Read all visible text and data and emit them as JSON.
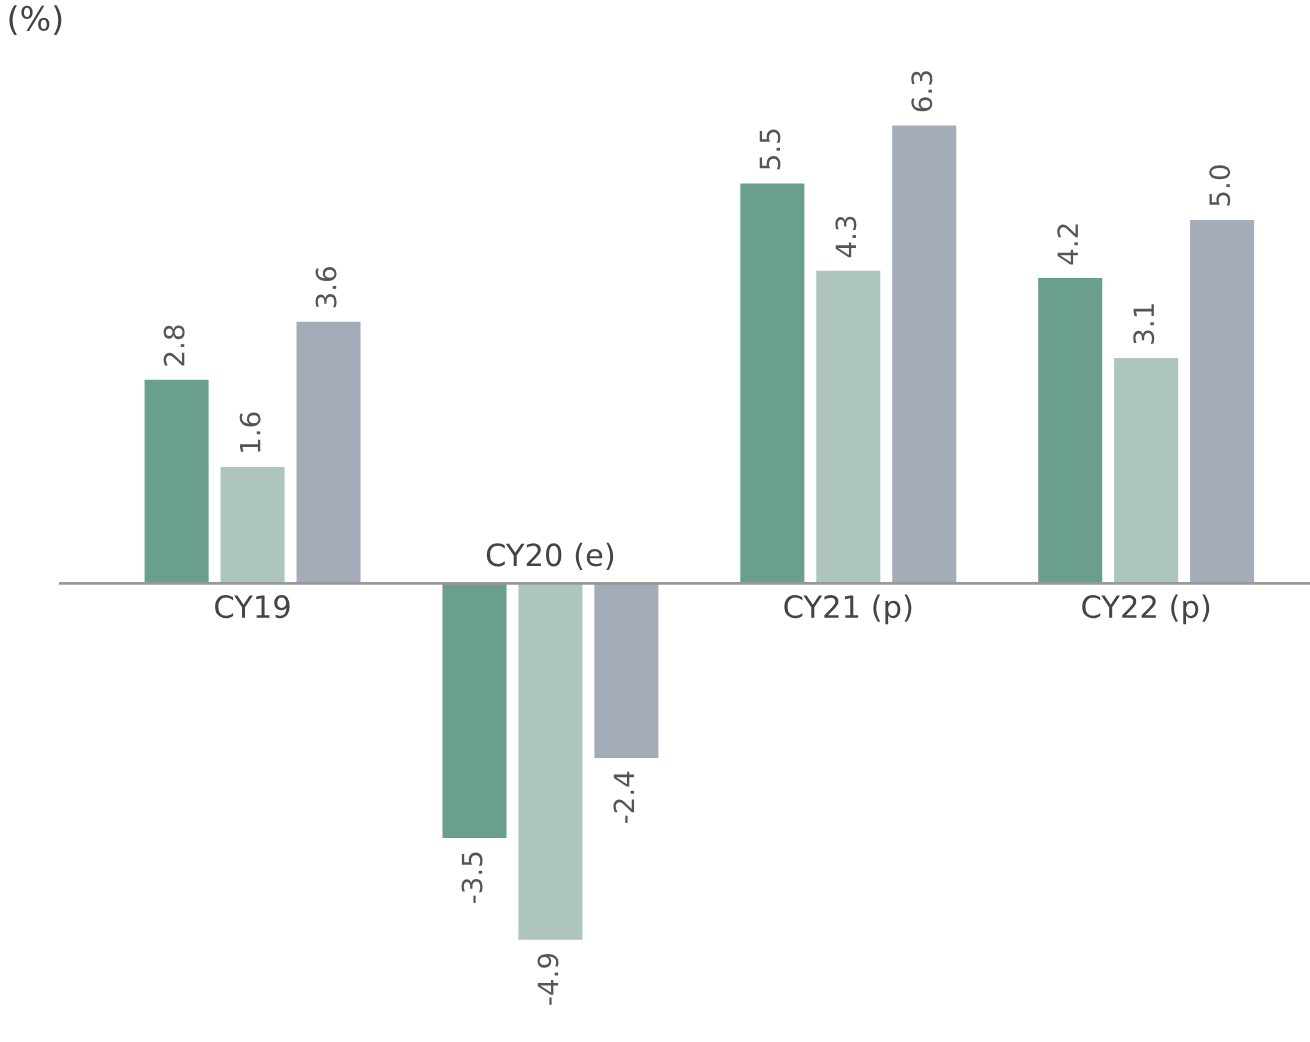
{
  "chart_data": {
    "type": "bar",
    "ylabel": "(%)",
    "categories": [
      "CY19",
      "CY20 (e)",
      "CY21 (p)",
      "CY22 (p)"
    ],
    "series": [
      {
        "color": "#6a9e8f",
        "values": [
          2.8,
          -3.5,
          5.5,
          4.2
        ],
        "value_labels": [
          "2.8",
          "-3.5",
          "5.5",
          "4.2"
        ]
      },
      {
        "color": "#adc5bc",
        "values": [
          1.6,
          -4.9,
          4.3,
          3.1
        ],
        "value_labels": [
          "1.6",
          "-4.9",
          "4.3",
          "3.1"
        ]
      },
      {
        "color": "#a4abb9",
        "values": [
          3.6,
          -2.4,
          6.3,
          5.0
        ],
        "value_labels": [
          "3.6",
          "-2.4",
          "6.3",
          "5.0"
        ]
      }
    ]
  }
}
